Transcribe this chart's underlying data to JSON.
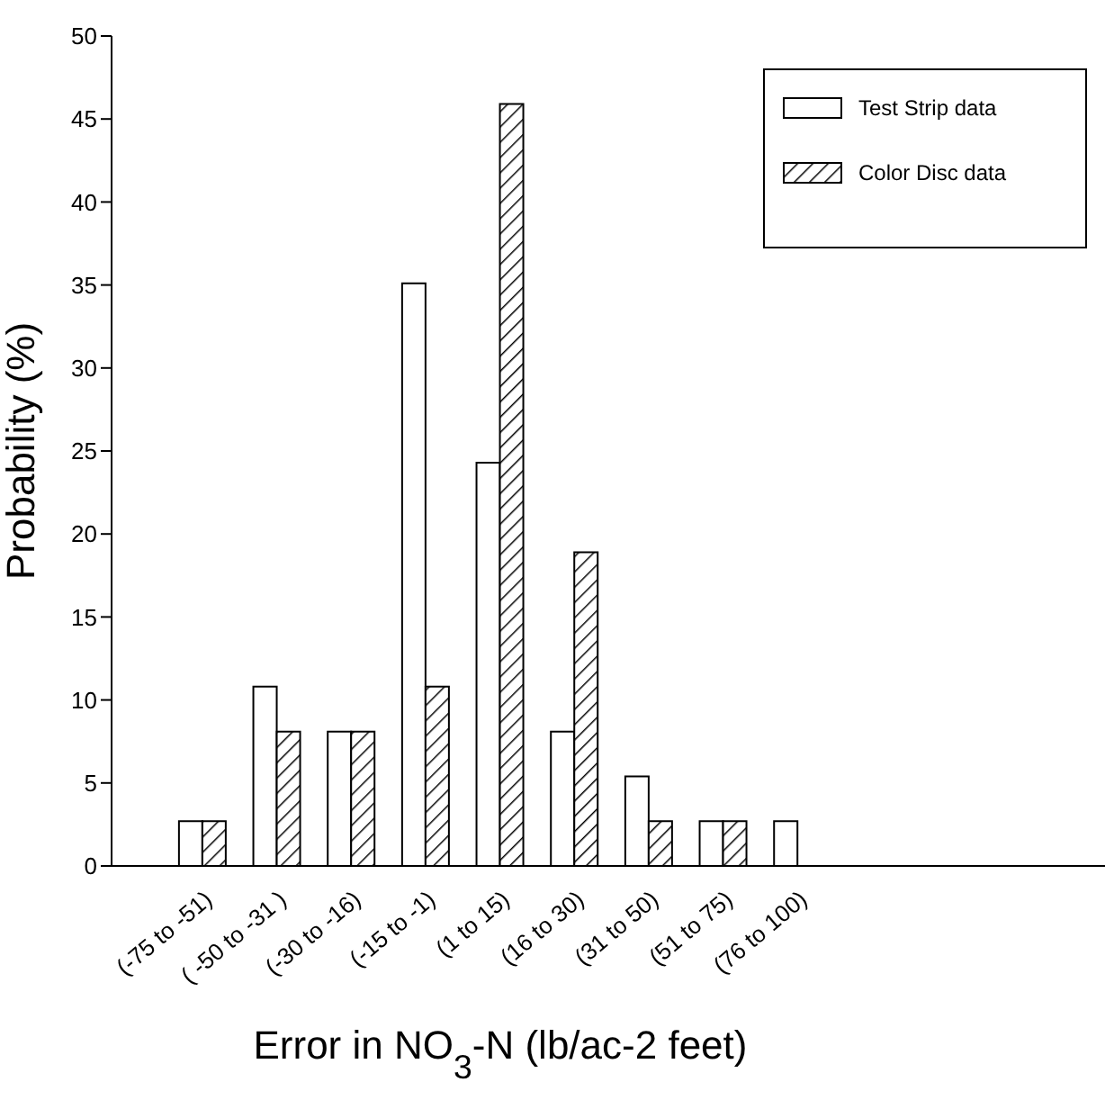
{
  "chart_data": {
    "type": "bar",
    "xlabel": "Error in NO$_{3}$-N (lb/ac-2 feet)",
    "ylabel": "Probability (%)",
    "categories": [
      "(-75 to -51)",
      "( -50 to -31 )",
      "(-30 to -16)",
      "(-15 to -1)",
      "(1 to 15)",
      "(16 to 30)",
      "(31 to 50)",
      "(51 to 75)",
      "(76 to 100)"
    ],
    "series": [
      {
        "name": "Test Strip data",
        "color": "#ffffff",
        "values": [
          2.7,
          10.8,
          8.1,
          35.1,
          24.3,
          8.1,
          5.4,
          2.7,
          2.7
        ]
      },
      {
        "name": "Color Disc data",
        "color": "#000000",
        "values": [
          2.7,
          8.1,
          8.1,
          10.8,
          45.9,
          18.9,
          2.7,
          2.7,
          0
        ]
      }
    ],
    "ylim": [
      0,
      50
    ],
    "yticks": [
      0,
      5,
      10,
      15,
      20,
      25,
      30,
      35,
      40,
      45,
      50
    ],
    "grid": false,
    "legend": "top right"
  }
}
